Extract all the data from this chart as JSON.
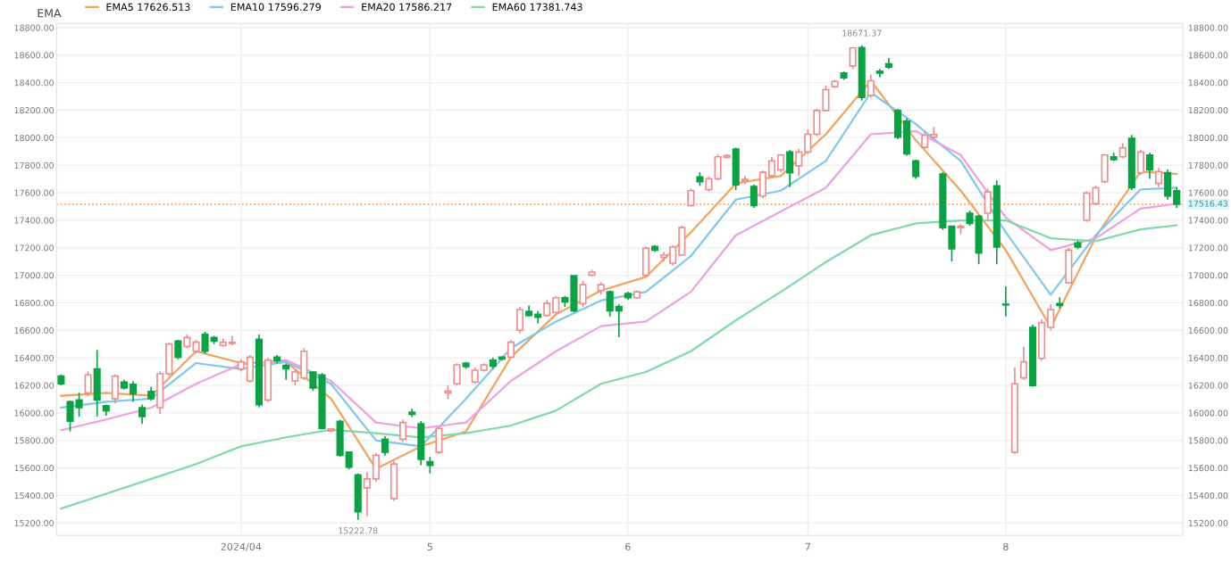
{
  "chart_data": {
    "type": "candlestick",
    "title": "EMA",
    "categories": [
      null,
      null,
      null,
      null,
      null,
      null,
      null,
      null,
      null,
      null,
      null,
      null,
      null,
      null,
      null,
      null,
      null,
      null,
      null,
      null,
      "2024/04",
      null,
      null,
      null,
      null,
      null,
      null,
      null,
      null,
      null,
      null,
      null,
      null,
      null,
      null,
      null,
      null,
      null,
      null,
      null,
      null,
      "5",
      null,
      null,
      null,
      null,
      null,
      null,
      null,
      null,
      null,
      null,
      null,
      null,
      null,
      null,
      null,
      null,
      null,
      null,
      null,
      null,
      null,
      "6",
      null,
      null,
      null,
      null,
      null,
      null,
      null,
      null,
      null,
      null,
      null,
      null,
      null,
      null,
      null,
      null,
      null,
      null,
      null,
      "7",
      null,
      null,
      null,
      null,
      null,
      null,
      null,
      null,
      null,
      null,
      null,
      null,
      null,
      null,
      null,
      null,
      null,
      null,
      null,
      null,
      null,
      "8",
      null,
      null,
      null,
      null,
      null,
      null,
      null,
      null,
      null,
      null,
      null,
      null,
      null,
      null,
      null,
      null,
      null,
      null,
      null
    ],
    "ohlc": [
      [
        16267,
        16280,
        16200,
        16211
      ],
      [
        16081,
        16090,
        15865,
        15939
      ],
      [
        16094,
        16146,
        15973,
        16038
      ],
      [
        16146,
        16300,
        16120,
        16276
      ],
      [
        16319,
        16457,
        15973,
        16094
      ],
      [
        16051,
        16060,
        15980,
        16016
      ],
      [
        16103,
        16280,
        16070,
        16267
      ],
      [
        16224,
        16240,
        16170,
        16181
      ],
      [
        16207,
        16230,
        16080,
        16138
      ],
      [
        16038,
        16060,
        15920,
        15973
      ],
      [
        16155,
        16190,
        16090,
        16103
      ],
      [
        16038,
        16300,
        15990,
        16284
      ],
      [
        16284,
        16510,
        16270,
        16500
      ],
      [
        16522,
        16530,
        16390,
        16405
      ],
      [
        16483,
        16570,
        16470,
        16548
      ],
      [
        16449,
        16530,
        16430,
        16513
      ],
      [
        16570,
        16590,
        16430,
        16449
      ],
      [
        16548,
        16560,
        16500,
        16522
      ],
      [
        16490,
        16540,
        16480,
        16513
      ],
      [
        16505,
        16560,
        16490,
        16513
      ],
      [
        16319,
        16390,
        16300,
        16371
      ],
      [
        16232,
        16420,
        16220,
        16405
      ],
      [
        16535,
        16570,
        16040,
        16060
      ],
      [
        16094,
        16400,
        16080,
        16384
      ],
      [
        16405,
        16420,
        16360,
        16380
      ],
      [
        16345,
        16360,
        16240,
        16320
      ],
      [
        16232,
        16310,
        16200,
        16297
      ],
      [
        16254,
        16470,
        16240,
        16448
      ],
      [
        16297,
        16300,
        16160,
        16181
      ],
      [
        16276,
        16290,
        15880,
        15887
      ],
      [
        15870,
        15890,
        15860,
        15883
      ],
      [
        15939,
        15950,
        15680,
        15692
      ],
      [
        15714,
        15720,
        15590,
        15606
      ],
      [
        15550,
        15560,
        15222.78,
        15282
      ],
      [
        15455,
        15570,
        15250,
        15520
      ],
      [
        15520,
        15710,
        15500,
        15692
      ],
      [
        15809,
        15830,
        15690,
        15714
      ],
      [
        15377,
        15650,
        15360,
        15628
      ],
      [
        15809,
        15950,
        15790,
        15930
      ],
      [
        16004,
        16030,
        15970,
        15990
      ],
      [
        15921,
        15940,
        15620,
        15662
      ],
      [
        15645,
        15680,
        15560,
        15619
      ],
      [
        15714,
        15900,
        15700,
        15887
      ],
      [
        16146,
        16200,
        16100,
        16159
      ],
      [
        16211,
        16360,
        16200,
        16349
      ],
      [
        16362,
        16370,
        16320,
        16336
      ],
      [
        16224,
        16330,
        16210,
        16310
      ],
      [
        16310,
        16360,
        16300,
        16349
      ],
      [
        16384,
        16400,
        16320,
        16340
      ],
      [
        16405,
        16410,
        16380,
        16392
      ],
      [
        16405,
        16530,
        16400,
        16513
      ],
      [
        16600,
        16770,
        16580,
        16751
      ],
      [
        16738,
        16780,
        16700,
        16708
      ],
      [
        16716,
        16740,
        16650,
        16695
      ],
      [
        16708,
        16820,
        16700,
        16795
      ],
      [
        16730,
        16850,
        16720,
        16837
      ],
      [
        16837,
        16850,
        16770,
        16807
      ],
      [
        16997,
        17000,
        16730,
        16742
      ],
      [
        16794,
        16960,
        16770,
        16932
      ],
      [
        17001,
        17040,
        16990,
        17023
      ],
      [
        16889,
        16950,
        16860,
        16932
      ],
      [
        16880,
        16890,
        16700,
        16742
      ],
      [
        16773,
        16790,
        16550,
        16742
      ],
      [
        16867,
        16880,
        16820,
        16837
      ],
      [
        16837,
        16890,
        16830,
        16880
      ],
      [
        17000,
        17210,
        16990,
        17196
      ],
      [
        17209,
        17220,
        17170,
        17183
      ],
      [
        17131,
        17170,
        17100,
        17148
      ],
      [
        17088,
        17220,
        17070,
        17205
      ],
      [
        17148,
        17360,
        17140,
        17347
      ],
      [
        17507,
        17630,
        17500,
        17615
      ],
      [
        17714,
        17750,
        17650,
        17680
      ],
      [
        17623,
        17720,
        17610,
        17701
      ],
      [
        17701,
        17880,
        17690,
        17861
      ],
      [
        17857,
        17880,
        17850,
        17870
      ],
      [
        17917,
        17930,
        17620,
        17658
      ],
      [
        17684,
        17720,
        17660,
        17697
      ],
      [
        17645,
        17660,
        17490,
        17507
      ],
      [
        17576,
        17760,
        17560,
        17749
      ],
      [
        17723,
        17860,
        17710,
        17831
      ],
      [
        17766,
        17880,
        17750,
        17874
      ],
      [
        17896,
        17910,
        17640,
        17745
      ],
      [
        17796,
        17920,
        17720,
        17896
      ],
      [
        17896,
        18060,
        17880,
        18025
      ],
      [
        18025,
        18210,
        18010,
        18198
      ],
      [
        18198,
        18380,
        18190,
        18349
      ],
      [
        18371,
        18420,
        18360,
        18409
      ],
      [
        18470,
        18480,
        18420,
        18436
      ],
      [
        18522,
        18660,
        18500,
        18652
      ],
      [
        18655,
        18671.37,
        18270,
        18293
      ],
      [
        18306,
        18460,
        18290,
        18414
      ],
      [
        18483,
        18500,
        18440,
        18470
      ],
      [
        18536,
        18580,
        18500,
        18514
      ],
      [
        18198,
        18210,
        17990,
        18004
      ],
      [
        18120,
        18140,
        17870,
        17883
      ],
      [
        17831,
        17840,
        17700,
        17719
      ],
      [
        17930,
        18050,
        17920,
        18017
      ],
      [
        18004,
        18080,
        17990,
        18022
      ],
      [
        17736,
        17750,
        17330,
        17347
      ],
      [
        17356,
        17360,
        17100,
        17192
      ],
      [
        17347,
        17370,
        17300,
        17356
      ],
      [
        17451,
        17470,
        17360,
        17377
      ],
      [
        17429,
        17440,
        17080,
        17161
      ],
      [
        17451,
        17630,
        17400,
        17606
      ],
      [
        17650,
        17690,
        17080,
        17205
      ],
      [
        16790,
        16920,
        16700,
        16785
      ],
      [
        15714,
        16330,
        15700,
        16211
      ],
      [
        16254,
        16480,
        16240,
        16371
      ],
      [
        16621,
        16640,
        16190,
        16198
      ],
      [
        16396,
        16680,
        16380,
        16656
      ],
      [
        16621,
        16790,
        16600,
        16751
      ],
      [
        16794,
        16840,
        16760,
        16781
      ],
      [
        16945,
        17200,
        16940,
        17183
      ],
      [
        17235,
        17250,
        17190,
        17205
      ],
      [
        17399,
        17610,
        17390,
        17598
      ],
      [
        17520,
        17650,
        17510,
        17636
      ],
      [
        17680,
        17880,
        17670,
        17874
      ],
      [
        17861,
        17890,
        17830,
        17840
      ],
      [
        17861,
        17960,
        17850,
        17926
      ],
      [
        17995,
        18020,
        17620,
        17637
      ],
      [
        17745,
        17910,
        17730,
        17896
      ],
      [
        17874,
        17890,
        17700,
        17766
      ],
      [
        17667,
        17780,
        17640,
        17754
      ],
      [
        17745,
        17770,
        17550,
        17576
      ],
      [
        17615,
        17640,
        17490,
        17516.43
      ]
    ],
    "series": [
      {
        "name": "EMA5 17626.513",
        "type": "line",
        "color": "#f5a35c",
        "values": [
          16124,
          null,
          null,
          null,
          null,
          16146,
          null,
          null,
          null,
          null,
          16124,
          null,
          null,
          null,
          null,
          16448,
          null,
          null,
          null,
          null,
          16362,
          null,
          null,
          null,
          null,
          16371,
          null,
          null,
          null,
          null,
          16103,
          null,
          null,
          null,
          null,
          15593,
          null,
          null,
          null,
          null,
          15757,
          null,
          null,
          null,
          null,
          15865,
          null,
          null,
          null,
          null,
          16405,
          null,
          null,
          null,
          null,
          16716,
          null,
          null,
          null,
          null,
          16889,
          null,
          null,
          null,
          null,
          16988,
          null,
          null,
          null,
          null,
          17312,
          null,
          null,
          null,
          null,
          17667,
          null,
          null,
          null,
          null,
          17723,
          null,
          null,
          null,
          null,
          18025,
          null,
          null,
          null,
          null,
          18414,
          null,
          null,
          null,
          null,
          17982,
          null,
          null,
          null,
          null,
          17615,
          null,
          null,
          null,
          null,
          17183,
          null,
          null,
          null,
          null,
          16621,
          null,
          null,
          null,
          null,
          17280,
          null,
          null,
          null,
          null,
          17753,
          null,
          null,
          null,
          17736
        ]
      },
      {
        "name": "EMA10 17596.279",
        "type": "line",
        "color": "#7ec8f0",
        "values": [
          16038,
          null,
          null,
          null,
          null,
          16081,
          null,
          null,
          null,
          null,
          16103,
          null,
          null,
          null,
          null,
          16362,
          null,
          null,
          null,
          null,
          16319,
          null,
          null,
          null,
          null,
          16371,
          null,
          null,
          null,
          null,
          16211,
          null,
          null,
          null,
          null,
          15800,
          null,
          null,
          null,
          null,
          15757,
          null,
          null,
          null,
          null,
          16103,
          null,
          null,
          null,
          null,
          16470,
          null,
          null,
          null,
          null,
          16664,
          null,
          null,
          null,
          null,
          16816,
          null,
          null,
          null,
          null,
          16880,
          null,
          null,
          null,
          null,
          17140,
          null,
          null,
          null,
          null,
          17550,
          null,
          null,
          null,
          null,
          17615,
          null,
          null,
          null,
          null,
          17831,
          null,
          null,
          null,
          null,
          18328,
          null,
          null,
          null,
          null,
          18099,
          null,
          null,
          null,
          null,
          17831,
          null,
          null,
          null,
          null,
          17312,
          null,
          null,
          null,
          null,
          16859,
          null,
          null,
          null,
          null,
          17291,
          null,
          null,
          null,
          null,
          17624,
          null,
          null,
          null,
          17636
        ]
      },
      {
        "name": "EMA20 17586.217",
        "type": "line",
        "color": "#f0a0e0",
        "values": [
          15874,
          null,
          null,
          null,
          null,
          15952,
          null,
          null,
          null,
          null,
          16038,
          null,
          null,
          null,
          null,
          16211,
          null,
          null,
          null,
          null,
          16353,
          null,
          null,
          null,
          null,
          16384,
          null,
          null,
          null,
          null,
          16232,
          null,
          null,
          null,
          null,
          15930,
          null,
          null,
          null,
          null,
          15887,
          null,
          null,
          null,
          null,
          15930,
          null,
          null,
          null,
          null,
          16232,
          null,
          null,
          null,
          null,
          16448,
          null,
          null,
          null,
          null,
          16630,
          null,
          null,
          null,
          null,
          16664,
          null,
          null,
          null,
          null,
          16880,
          null,
          null,
          null,
          null,
          17291,
          null,
          null,
          null,
          null,
          17464,
          null,
          null,
          null,
          null,
          17636,
          null,
          null,
          null,
          null,
          18025,
          null,
          null,
          null,
          null,
          18047,
          null,
          null,
          null,
          null,
          17874,
          null,
          null,
          null,
          null,
          17420,
          null,
          null,
          null,
          null,
          17183,
          null,
          null,
          null,
          null,
          17269,
          null,
          null,
          null,
          null,
          17485,
          null,
          null,
          null,
          17520
        ]
      },
      {
        "name": "EMA60 17381.743",
        "type": "line",
        "color": "#7fd9a8",
        "values": [
          15304,
          null,
          null,
          null,
          null,
          15412,
          null,
          null,
          null,
          null,
          15520,
          null,
          null,
          null,
          null,
          15628,
          null,
          null,
          null,
          null,
          15757,
          null,
          null,
          null,
          null,
          15822,
          null,
          null,
          null,
          null,
          15878,
          null,
          null,
          null,
          null,
          15852,
          null,
          null,
          null,
          null,
          15822,
          null,
          null,
          null,
          null,
          15852,
          null,
          null,
          null,
          null,
          15908,
          null,
          null,
          null,
          null,
          16016,
          null,
          null,
          null,
          null,
          16211,
          null,
          null,
          null,
          null,
          16297,
          null,
          null,
          null,
          null,
          16448,
          null,
          null,
          null,
          null,
          16673,
          null,
          null,
          null,
          null,
          16880,
          null,
          null,
          null,
          null,
          17096,
          null,
          null,
          null,
          null,
          17291,
          null,
          null,
          null,
          null,
          17377,
          null,
          null,
          null,
          null,
          17399,
          null,
          null,
          null,
          null,
          17399,
          null,
          null,
          null,
          null,
          17269,
          null,
          null,
          null,
          null,
          17248,
          null,
          null,
          null,
          null,
          17334,
          null,
          null,
          null,
          17364
        ]
      }
    ],
    "ylim": [
      15110,
      18830
    ],
    "yticks": [
      {
        "value": 15200,
        "label": "15200.00"
      },
      {
        "value": 15400,
        "label": "15400.00"
      },
      {
        "value": 15600,
        "label": "15600.00"
      },
      {
        "value": 15800,
        "label": "15800.00"
      },
      {
        "value": 16000,
        "label": "16000.00"
      },
      {
        "value": 16200,
        "label": "16200.00"
      },
      {
        "value": 16400,
        "label": "16400.00"
      },
      {
        "value": 16600,
        "label": "16600.00"
      },
      {
        "value": 16800,
        "label": "16800.00"
      },
      {
        "value": 17000,
        "label": "17000.00"
      },
      {
        "value": 17200,
        "label": "17200.00"
      },
      {
        "value": 17400,
        "label": "17400.00"
      },
      {
        "value": 17600,
        "label": "17600.00"
      },
      {
        "value": 17800,
        "label": "17800.00"
      },
      {
        "value": 18000,
        "label": "18000.00"
      },
      {
        "value": 18200,
        "label": "18200.00"
      },
      {
        "value": 18400,
        "label": "18400.00"
      },
      {
        "value": 18600,
        "label": "18600.00"
      },
      {
        "value": 18800,
        "label": "18800.00"
      }
    ],
    "y2lim": [
      15110,
      18830
    ],
    "y2ticks": [
      {
        "value": 15200,
        "label": "15200.00"
      },
      {
        "value": 15400,
        "label": "15400.00"
      },
      {
        "value": 15600,
        "label": "15600.00"
      },
      {
        "value": 15800,
        "label": "15800.00"
      },
      {
        "value": 16000,
        "label": "16000.00"
      },
      {
        "value": 16200,
        "label": "16200.00"
      },
      {
        "value": 16400,
        "label": "16400.00"
      },
      {
        "value": 16600,
        "label": "16600.00"
      },
      {
        "value": 16800,
        "label": "16800.00"
      },
      {
        "value": 17000,
        "label": "17000.00"
      },
      {
        "value": 17200,
        "label": "17200.00"
      },
      {
        "value": 17400,
        "label": "17400.00"
      },
      {
        "value": 17600,
        "label": "17600.00"
      },
      {
        "value": 17800,
        "label": "17800.00"
      },
      {
        "value": 18000,
        "label": "18000.00"
      },
      {
        "value": 18200,
        "label": "18200.00"
      },
      {
        "value": 18400,
        "label": "18400.00"
      },
      {
        "value": 18600,
        "label": "18600.00"
      },
      {
        "value": 18800,
        "label": "18800.00"
      }
    ],
    "ref_lines": [
      {
        "axis": "y",
        "value": 17516.43,
        "label": "17516.43",
        "color": "#f5a35c",
        "line_style": "dotted"
      }
    ],
    "annotations": [
      {
        "text": "18671.37",
        "y": 18671.37
      },
      {
        "text": "15222.78",
        "y": 15222.78
      }
    ],
    "grid": true,
    "legend": "top left"
  }
}
